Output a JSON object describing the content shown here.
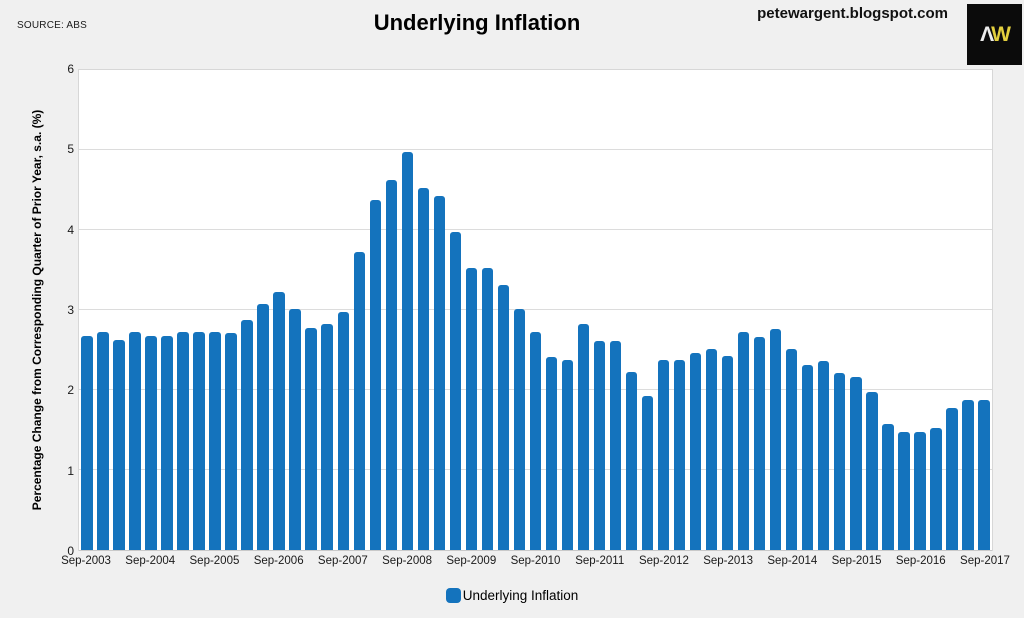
{
  "page": {
    "source_label": "SOURCE: ABS",
    "title": "Underlying Inflation",
    "watermark": "petewargent.blogspot.com",
    "logo": {
      "letter_a": "Λ",
      "letter_w": "W"
    }
  },
  "colors": {
    "bar_blue": "#1473bd",
    "figure_background": "#f0f0f0",
    "plot_background": "#ffffff",
    "gridline": "#dcdcdc",
    "logo_background": "#0b0b0b",
    "logo_letter_a": "#ececec",
    "logo_letter_w": "#e3cf3e"
  },
  "legend": {
    "label": "Underlying Inflation"
  },
  "axes": {
    "y_title": "Percentage Change from Corresponding Quarter of Prior Year, s.a. (%)",
    "y_ticks": [
      0,
      1,
      2,
      3,
      4,
      5,
      6
    ],
    "x_tick_labels": [
      "Sep-2003",
      "Sep-2004",
      "Sep-2005",
      "Sep-2006",
      "Sep-2007",
      "Sep-2008",
      "Sep-2009",
      "Sep-2010",
      "Sep-2011",
      "Sep-2012",
      "Sep-2013",
      "Sep-2014",
      "Sep-2015",
      "Sep-2016",
      "Sep-2017"
    ],
    "x_tick_every": 4
  },
  "chart_data": {
    "type": "bar",
    "title": "Underlying Inflation",
    "xlabel": "",
    "ylabel": "Percentage Change from Corresponding Quarter of Prior Year, s.a. (%)",
    "ylim": [
      0,
      6
    ],
    "grid": true,
    "legend_position": "bottom",
    "legend_entries": [
      "Underlying Inflation"
    ],
    "categories": [
      "Sep-2003",
      "Dec-2003",
      "Mar-2004",
      "Jun-2004",
      "Sep-2004",
      "Dec-2004",
      "Mar-2005",
      "Jun-2005",
      "Sep-2005",
      "Dec-2005",
      "Mar-2006",
      "Jun-2006",
      "Sep-2006",
      "Dec-2006",
      "Mar-2007",
      "Jun-2007",
      "Sep-2007",
      "Dec-2007",
      "Mar-2008",
      "Jun-2008",
      "Sep-2008",
      "Dec-2008",
      "Mar-2009",
      "Jun-2009",
      "Sep-2009",
      "Dec-2009",
      "Mar-2010",
      "Jun-2010",
      "Sep-2010",
      "Dec-2010",
      "Mar-2011",
      "Jun-2011",
      "Sep-2011",
      "Dec-2011",
      "Mar-2012",
      "Jun-2012",
      "Sep-2012",
      "Dec-2012",
      "Mar-2013",
      "Jun-2013",
      "Sep-2013",
      "Dec-2013",
      "Mar-2014",
      "Jun-2014",
      "Sep-2014",
      "Dec-2014",
      "Mar-2015",
      "Jun-2015",
      "Sep-2015",
      "Dec-2015",
      "Mar-2016",
      "Jun-2016",
      "Sep-2016",
      "Dec-2016",
      "Mar-2017",
      "Jun-2017",
      "Sep-2017"
    ],
    "values": [
      2.67,
      2.73,
      2.62,
      2.72,
      2.68,
      2.67,
      2.72,
      2.72,
      2.72,
      2.71,
      2.87,
      3.08,
      3.22,
      3.01,
      2.77,
      2.82,
      2.97,
      3.72,
      4.37,
      4.63,
      4.98,
      4.53,
      4.43,
      3.97,
      3.52,
      3.52,
      3.31,
      3.01,
      2.72,
      2.41,
      2.37,
      2.82,
      2.61,
      2.61,
      2.22,
      1.92,
      2.37,
      2.37,
      2.46,
      2.51,
      2.42,
      2.72,
      2.66,
      2.76,
      2.51,
      2.31,
      2.36,
      2.21,
      2.16,
      1.97,
      1.58,
      1.48,
      1.48,
      1.53,
      1.77,
      1.88,
      1.88
    ]
  }
}
